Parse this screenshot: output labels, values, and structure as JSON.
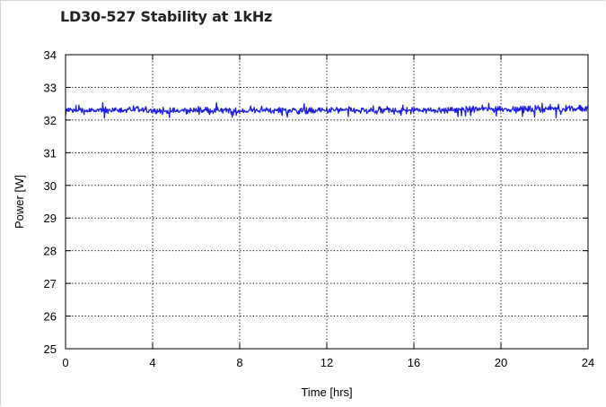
{
  "chart_data": {
    "type": "line",
    "title": "LD30-527 Stability at 1kHz",
    "xlabel": "Time [hrs]",
    "ylabel": "Power [W]",
    "xlim": [
      0,
      24
    ],
    "ylim": [
      25,
      34
    ],
    "x_ticks": [
      0,
      4,
      8,
      12,
      16,
      20,
      24
    ],
    "y_ticks": [
      25,
      26,
      27,
      28,
      29,
      30,
      31,
      32,
      33,
      34
    ],
    "grid": true,
    "grid_style": "dotted",
    "legend": "none",
    "line_color": "#1f1fe6",
    "series": [
      {
        "x": [
          0,
          1,
          2,
          3,
          4,
          5,
          6,
          7,
          8,
          9,
          10,
          11,
          12,
          13,
          14,
          15,
          16,
          17,
          18,
          19,
          20,
          21,
          22,
          23,
          24
        ],
        "values": [
          32.3,
          32.28,
          32.3,
          32.32,
          32.28,
          32.27,
          32.3,
          32.29,
          32.27,
          32.3,
          32.31,
          32.28,
          32.29,
          32.3,
          32.27,
          32.29,
          32.31,
          32.3,
          32.32,
          32.33,
          32.34,
          32.33,
          32.34,
          32.35,
          32.33
        ],
        "noise_pp": 0.3
      }
    ]
  }
}
